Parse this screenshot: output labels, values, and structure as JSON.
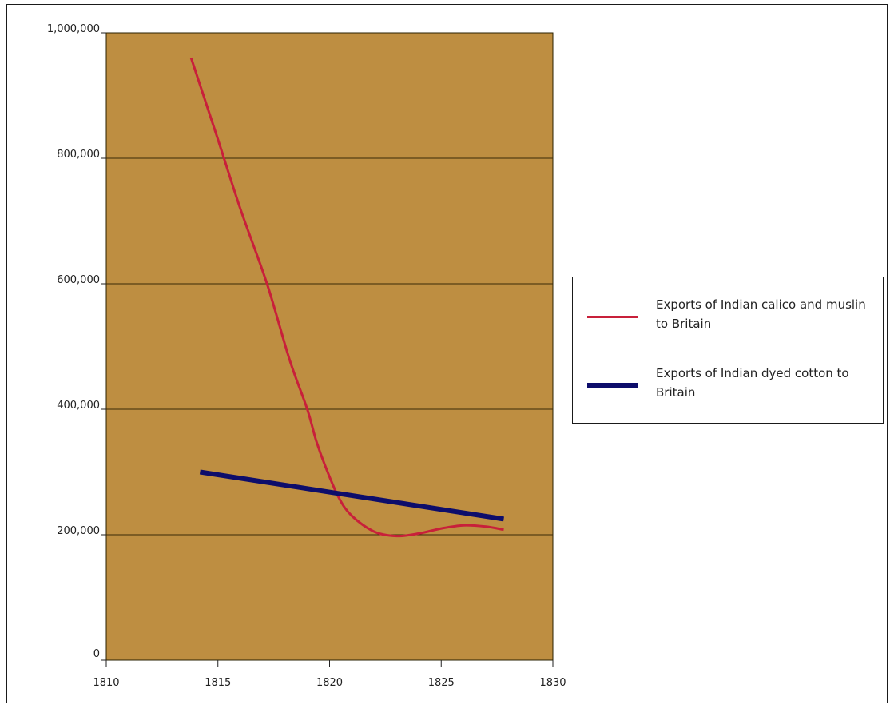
{
  "chart_data": {
    "type": "line",
    "title": "",
    "xlabel": "",
    "ylabel": "",
    "xlim": [
      1810,
      1830
    ],
    "ylim": [
      0,
      1000000
    ],
    "x_ticks": [
      1810,
      1815,
      1820,
      1825,
      1830
    ],
    "x_tick_labels": [
      "1810",
      "1815",
      "1820",
      "1825",
      "1830"
    ],
    "y_ticks": [
      0,
      200000,
      400000,
      600000,
      800000,
      1000000
    ],
    "y_tick_labels": [
      "0",
      "200,000",
      "400,000",
      "600,000",
      "800,000",
      "1,000,000"
    ],
    "grid": "horizontal",
    "plot_background": "#be8e41",
    "legend_position": "right",
    "series": [
      {
        "name": "Exports of Indian calico and muslin to Britain",
        "color": "#c8203a",
        "x": [
          1813.8,
          1815,
          1816,
          1817.2,
          1818.2,
          1819,
          1819.4,
          1819.8,
          1820.4,
          1821,
          1822,
          1823,
          1824,
          1825,
          1826,
          1827,
          1827.8
        ],
        "y": [
          960000,
          830000,
          720000,
          600000,
          480000,
          400000,
          350000,
          310000,
          260000,
          230000,
          205000,
          198000,
          202000,
          210000,
          215000,
          213000,
          208000
        ]
      },
      {
        "name": "Exports of Indian dyed cotton to Britain",
        "color": "#0d0d6b",
        "x": [
          1814.2,
          1827.8
        ],
        "y": [
          300000,
          225000
        ]
      }
    ]
  }
}
